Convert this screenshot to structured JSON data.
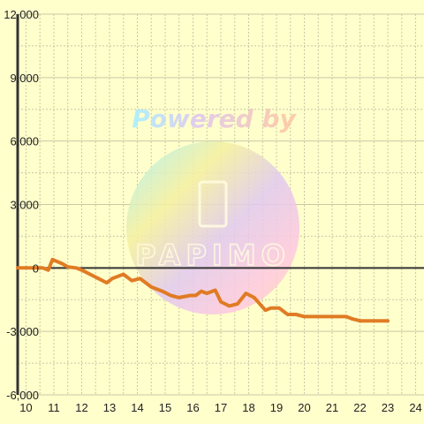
{
  "watermark": {
    "powered_by": "Powered by",
    "brand": "PAPIMO"
  },
  "colors": {
    "background": "#ffffcc",
    "grid": "#c8c8a8",
    "zero_line": "#333333",
    "series": "#e07b24"
  },
  "chart_data": {
    "type": "line",
    "xlabel": "",
    "ylabel": "",
    "xlim": [
      9.7,
      24.3
    ],
    "ylim": [
      -6000,
      12000
    ],
    "x_ticks": [
      {
        "v": 10,
        "label": "10"
      },
      {
        "v": 11,
        "label": "11"
      },
      {
        "v": 12,
        "label": "12"
      },
      {
        "v": 13,
        "label": "13"
      },
      {
        "v": 14,
        "label": "14"
      },
      {
        "v": 15,
        "label": "15"
      },
      {
        "v": 16,
        "label": "16"
      },
      {
        "v": 17,
        "label": "17"
      },
      {
        "v": 18,
        "label": "18"
      },
      {
        "v": 19,
        "label": "19"
      },
      {
        "v": 20,
        "label": "20"
      },
      {
        "v": 21,
        "label": "21"
      },
      {
        "v": 22,
        "label": "22"
      },
      {
        "v": 23,
        "label": "23"
      },
      {
        "v": 24,
        "label": "24"
      }
    ],
    "y_ticks": [
      {
        "v": 12000,
        "label": "12,000"
      },
      {
        "v": 9000,
        "label": "9,000"
      },
      {
        "v": 6000,
        "label": "6,000"
      },
      {
        "v": 3000,
        "label": "3,000"
      },
      {
        "v": 0,
        "label": "0"
      },
      {
        "v": -3000,
        "label": "-3,000"
      },
      {
        "v": -6000,
        "label": "-6,000"
      }
    ],
    "grid": true,
    "series": [
      {
        "x": [
          9.7,
          10.6,
          10.8,
          10.95,
          11.3,
          11.5,
          11.8,
          12.0,
          12.3,
          12.6,
          12.9,
          13.1,
          13.5,
          13.8,
          14.1,
          14.5,
          14.9,
          15.2,
          15.5,
          15.9,
          16.1,
          16.3,
          16.5,
          16.8,
          17.0,
          17.3,
          17.6,
          17.9,
          18.2,
          18.6,
          18.8,
          19.1,
          19.4,
          19.7,
          20.0,
          20.5,
          21.0,
          21.5,
          21.7,
          22.0,
          22.5,
          23.0
        ],
        "y": [
          0,
          0,
          -100,
          400,
          200,
          50,
          0,
          -100,
          -300,
          -500,
          -700,
          -500,
          -300,
          -600,
          -500,
          -900,
          -1100,
          -1300,
          -1400,
          -1300,
          -1300,
          -1100,
          -1200,
          -1050,
          -1600,
          -1800,
          -1700,
          -1200,
          -1400,
          -2000,
          -1900,
          -1900,
          -2200,
          -2200,
          -2300,
          -2300,
          -2300,
          -2300,
          -2400,
          -2500,
          -2500,
          -2500
        ]
      }
    ]
  }
}
